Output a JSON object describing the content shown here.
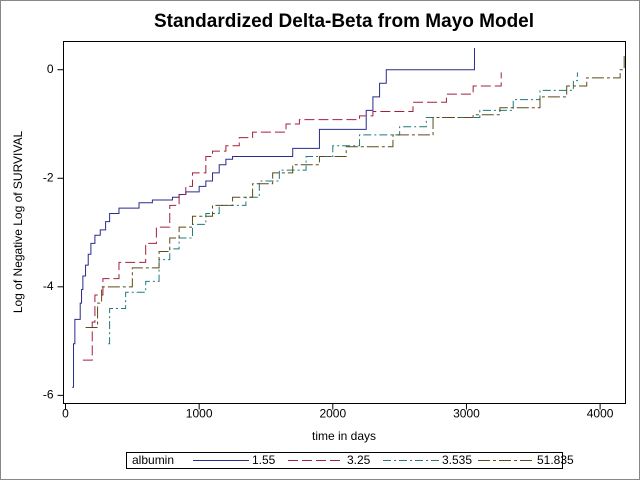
{
  "chart_data": {
    "type": "step",
    "title": "Standardized Delta-Beta from Mayo Model",
    "xlabel": "time in days",
    "ylabel": "Log of Negative Log of SURVIVAL",
    "legend_title": "albumin",
    "xlim": [
      -15,
      4190
    ],
    "xticks": [
      0,
      1000,
      2000,
      3000,
      4000
    ],
    "ylim": [
      -6.15,
      0.52
    ],
    "yticks": [
      -6,
      -4,
      -2,
      0
    ],
    "series": [
      {
        "name": "1.55",
        "color": "#2b2b8c",
        "x": [
          50,
          60,
          70,
          110,
          120,
          130,
          150,
          170,
          190,
          220,
          260,
          300,
          330,
          400,
          550,
          650,
          800,
          850,
          900,
          1000,
          1050,
          1100,
          1150,
          1200,
          1250,
          1700,
          1900,
          2250,
          2300,
          2350,
          2400,
          3060
        ],
        "values": [
          -5.85,
          -5.05,
          -4.6,
          -4.3,
          -4.05,
          -3.8,
          -3.6,
          -3.4,
          -3.2,
          -3.05,
          -2.95,
          -2.8,
          -2.65,
          -2.55,
          -2.45,
          -2.4,
          -2.35,
          -2.3,
          -2.25,
          -2.15,
          -2.05,
          -1.9,
          -1.75,
          -1.65,
          -1.6,
          -1.45,
          -1.1,
          -0.75,
          -0.5,
          -0.25,
          0,
          0.4
        ]
      },
      {
        "name": "3.25",
        "color": "#a3203c",
        "x": [
          130,
          200,
          220,
          280,
          400,
          600,
          680,
          780,
          850,
          900,
          950,
          1050,
          1100,
          1200,
          1300,
          1400,
          1650,
          1750,
          2200,
          2300,
          2600,
          2850,
          3050,
          3260
        ],
        "values": [
          -5.35,
          -4.65,
          -4.15,
          -3.85,
          -3.55,
          -3.2,
          -2.9,
          -2.5,
          -2.3,
          -2.15,
          -1.9,
          -1.6,
          -1.5,
          -1.4,
          -1.25,
          -1.15,
          -1.0,
          -0.92,
          -0.85,
          -0.77,
          -0.6,
          -0.45,
          -0.3,
          -0.05
        ]
      },
      {
        "name": "3.535",
        "color": "#1f7a7a",
        "x": [
          320,
          330,
          450,
          600,
          700,
          780,
          850,
          950,
          1050,
          1150,
          1350,
          1450,
          1600,
          1800,
          2000,
          2200,
          2500,
          2700,
          3100,
          3350,
          3550,
          3800,
          3830
        ],
        "values": [
          -5.05,
          -4.4,
          -4.1,
          -3.9,
          -3.5,
          -3.3,
          -3.1,
          -2.85,
          -2.65,
          -2.5,
          -2.35,
          -2.05,
          -1.85,
          -1.6,
          -1.4,
          -1.2,
          -1.05,
          -0.88,
          -0.75,
          -0.55,
          -0.38,
          -0.2,
          -0.05
        ]
      },
      {
        "name": "51.835",
        "color": "#5c4a18",
        "x": [
          150,
          240,
          270,
          500,
          700,
          780,
          850,
          950,
          1100,
          1250,
          1400,
          1550,
          1700,
          1900,
          2100,
          2450,
          2750,
          3050,
          3250,
          3550,
          3750,
          3900,
          4150,
          4180
        ],
        "values": [
          -4.75,
          -4.3,
          -4.0,
          -3.65,
          -3.35,
          -3.1,
          -2.9,
          -2.7,
          -2.5,
          -2.35,
          -2.1,
          -1.9,
          -1.75,
          -1.6,
          -1.42,
          -1.2,
          -0.88,
          -0.83,
          -0.7,
          -0.5,
          -0.3,
          -0.15,
          0.0,
          0.3
        ]
      }
    ]
  }
}
